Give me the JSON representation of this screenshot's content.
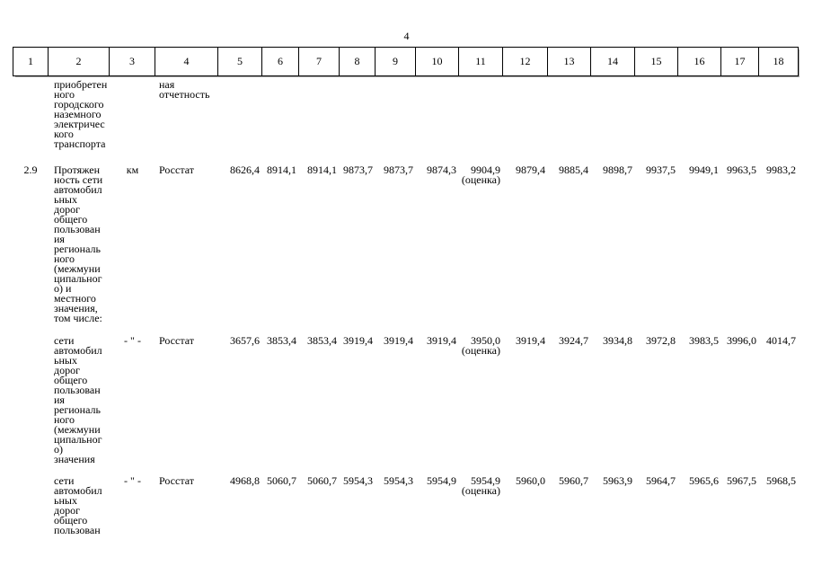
{
  "page": {
    "number": "4"
  },
  "colors": {
    "background": "#ffffff",
    "text": "#000000",
    "border": "#000000",
    "table_shadow": "#a8a8a8"
  },
  "table": {
    "column_numbers": [
      "1",
      "2",
      "3",
      "4",
      "5",
      "6",
      "7",
      "8",
      "9",
      "10",
      "11",
      "12",
      "13",
      "14",
      "15",
      "16",
      "17",
      "18"
    ],
    "rows": [
      {
        "num": "",
        "name": "приобретен\nного\nгородского\nназемного\nэлектричес\nкого\nтранспорта",
        "unit": "",
        "source": "ная\nотчетность",
        "values": [
          "",
          "",
          "",
          "",
          "",
          "",
          "",
          "",
          "",
          "",
          "",
          "",
          "",
          ""
        ]
      },
      {
        "num": "2.9",
        "name": "Протяжен\nность сети\nавтомобил\nьных\nдорог\nобщего\nпользован\nия\nрегиональ\nного\n(межмуни\nципальног\nо) и\nместного\nзначения,\nтом числе:",
        "unit": "км",
        "source": "Росстат",
        "values": [
          "8626,4",
          "8914,1",
          "8914,1",
          "9873,7",
          "9873,7",
          "9874,3",
          "9904,9\n(оценка)",
          "9879,4",
          "9885,4",
          "9898,7",
          "9937,5",
          "9949,1",
          "9963,5",
          "9983,2"
        ]
      },
      {
        "num": "",
        "name": "сети\nавтомобил\nьных\nдорог\nобщего\nпользован\nия\nрегиональ\nного\n(межмуни\nципальног\nо)\nзначения",
        "unit": "- \" -",
        "source": "Росстат",
        "values": [
          "3657,6",
          "3853,4",
          "3853,4",
          "3919,4",
          "3919,4",
          "3919,4",
          "3950,0\n(оценка)",
          "3919,4",
          "3924,7",
          "3934,8",
          "3972,8",
          "3983,5",
          "3996,0",
          "4014,7"
        ]
      },
      {
        "num": "",
        "name": "сети\nавтомобил\nьных\nдорог\nобщего\nпользован",
        "unit": "- \" -",
        "source": "Росстат",
        "values": [
          "4968,8",
          "5060,7",
          "5060,7",
          "5954,3",
          "5954,3",
          "5954,9",
          "5954,9\n(оценка)",
          "5960,0",
          "5960,7",
          "5963,9",
          "5964,7",
          "5965,6",
          "5967,5",
          "5968,5"
        ]
      }
    ]
  }
}
